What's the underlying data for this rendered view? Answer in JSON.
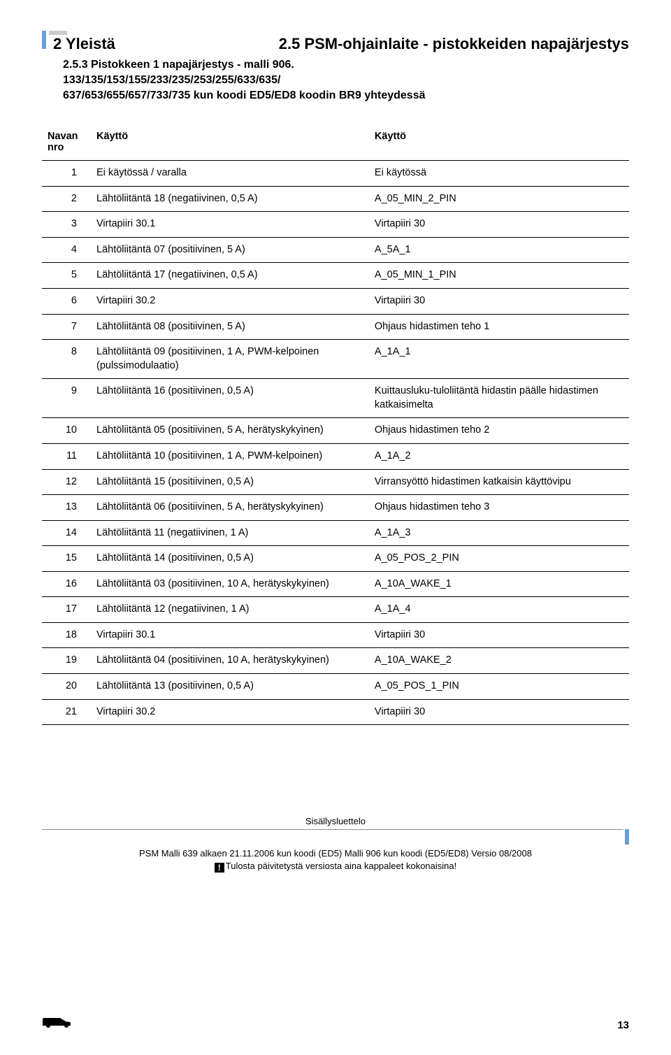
{
  "header": {
    "section_number": "2 Yleistä",
    "section_title": "2.5 PSM-ohjainlaite - pistokkeiden napajärjestys",
    "subhead": "2.5.3  Pistokkeen 1 napajärjestys - malli 906.",
    "subhead_line1": "133/135/153/155/233/235/253/255/633/635/",
    "subhead_line2": "637/653/655/657/733/735 kun koodi ED5/ED8 koodin BR9 yhteydessä"
  },
  "table": {
    "columns": {
      "n_label_a": "Navan",
      "n_label_b": "nro",
      "use1": "Käyttö",
      "use2": "Käyttö"
    },
    "widths": {
      "n": 70,
      "col1": 420,
      "col2": 350
    },
    "rows": [
      {
        "n": "1",
        "a": "Ei käytössä / varalla",
        "b": "Ei käytössä"
      },
      {
        "n": "2",
        "a": "Lähtöliitäntä 18 (negatiivinen, 0,5 A)",
        "b": "A_05_MIN_2_PIN"
      },
      {
        "n": "3",
        "a": "Virtapiiri 30.1",
        "b": "Virtapiiri 30"
      },
      {
        "n": "4",
        "a": "Lähtöliitäntä 07 (positiivinen, 5 A)",
        "b": "A_5A_1"
      },
      {
        "n": "5",
        "a": "Lähtöliitäntä 17 (negatiivinen, 0,5 A)",
        "b": "A_05_MIN_1_PIN"
      },
      {
        "n": "6",
        "a": "Virtapiiri 30.2",
        "b": "Virtapiiri 30"
      },
      {
        "n": "7",
        "a": "Lähtöliitäntä 08 (positiivinen, 5 A)",
        "b": "Ohjaus hidastimen teho 1"
      },
      {
        "n": "8",
        "a": "Lähtöliitäntä 09 (positiivinen, 1 A, PWM-kelpoinen (pulssimodulaatio)",
        "b": "A_1A_1"
      },
      {
        "n": "9",
        "a": "Lähtöliitäntä 16 (positiivinen, 0,5 A)",
        "b": "Kuittausluku-tuloliitäntä hidastin päälle hidastimen katkaisimelta"
      },
      {
        "n": "10",
        "a": "Lähtöliitäntä 05 (positiivinen, 5 A, herätyskykyinen)",
        "b": "Ohjaus hidastimen teho 2"
      },
      {
        "n": "11",
        "a": "Lähtöliitäntä 10 (positiivinen, 1 A, PWM-kelpoinen)",
        "b": "A_1A_2"
      },
      {
        "n": "12",
        "a": "Lähtöliitäntä 15 (positiivinen, 0,5 A)",
        "b": "Virransyöttö hidastimen katkaisin käyttövipu"
      },
      {
        "n": "13",
        "a": "Lähtöliitäntä 06 (positiivinen, 5 A, herätyskykyinen)",
        "b": "Ohjaus hidastimen teho 3"
      },
      {
        "n": "14",
        "a": "Lähtöliitäntä 11 (negatiivinen, 1 A)",
        "b": "A_1A_3"
      },
      {
        "n": "15",
        "a": "Lähtöliitäntä 14 (positiivinen, 0,5 A)",
        "b": "A_05_POS_2_PIN"
      },
      {
        "n": "16",
        "a": "Lähtöliitäntä 03 (positiivinen, 10 A, herätyskykyinen)",
        "b": "A_10A_WAKE_1"
      },
      {
        "n": "17",
        "a": "Lähtöliitäntä 12 (negatiivinen, 1 A)",
        "b": "A_1A_4"
      },
      {
        "n": "18",
        "a": "Virtapiiri 30.1",
        "b": "Virtapiiri 30"
      },
      {
        "n": "19",
        "a": "Lähtöliitäntä 04 (positiivinen, 10 A, herätyskykyinen)",
        "b": "A_10A_WAKE_2"
      },
      {
        "n": "20",
        "a": "Lähtöliitäntä 13 (positiivinen, 0,5 A)",
        "b": "A_05_POS_1_PIN"
      },
      {
        "n": "21",
        "a": "Virtapiiri 30.2",
        "b": "Virtapiiri 30"
      }
    ]
  },
  "footer": {
    "toc_label": "Sisällysluettelo",
    "line1": "PSM Malli 639 alkaen 21.11.2006 kun koodi (ED5) Malli 906 kun koodi (ED5/ED8) Versio 08/2008",
    "line2": "Tulosta päivitetystä versiosta aina kappaleet kokonaisina!",
    "page_number": "13"
  },
  "colors": {
    "blue": "#6a9fd4",
    "grey_tick": "#c9cbcd",
    "rule_grey": "#8a8c8e",
    "text": "#000000",
    "bg": "#ffffff"
  },
  "typography": {
    "body_family": "Arial, Helvetica, sans-serif",
    "section_size_pt": 16,
    "sub_size_pt": 12,
    "table_size_pt": 11,
    "footer_size_pt": 10
  }
}
